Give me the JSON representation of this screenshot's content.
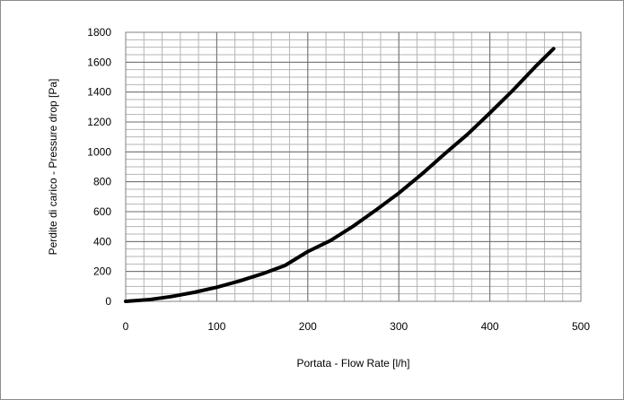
{
  "chart_data": {
    "type": "line",
    "xlabel": "Portata - Flow Rate [l/h]",
    "ylabel": "Perdite di carico - Pressure drop [Pa]",
    "xlim": [
      0,
      500
    ],
    "ylim": [
      0,
      1800
    ],
    "x_ticks": [
      "0",
      "100",
      "200",
      "300",
      "400",
      "500"
    ],
    "y_ticks": [
      "0",
      "200",
      "400",
      "600",
      "800",
      "1000",
      "1200",
      "1400",
      "1600",
      "1800"
    ],
    "grid": {
      "major": true,
      "minor": true
    },
    "legend": "none",
    "series": [
      {
        "color": "#000000",
        "x": [
          0,
          25,
          50,
          75,
          100,
          125,
          150,
          175,
          200,
          225,
          250,
          275,
          300,
          325,
          350,
          375,
          400,
          425,
          450,
          470
        ],
        "y": [
          0,
          11,
          32,
          60,
          94,
          136,
          184,
          240,
          333,
          407,
          503,
          611,
          724,
          850,
          985,
          1115,
          1260,
          1410,
          1570,
          1690
        ]
      }
    ]
  }
}
